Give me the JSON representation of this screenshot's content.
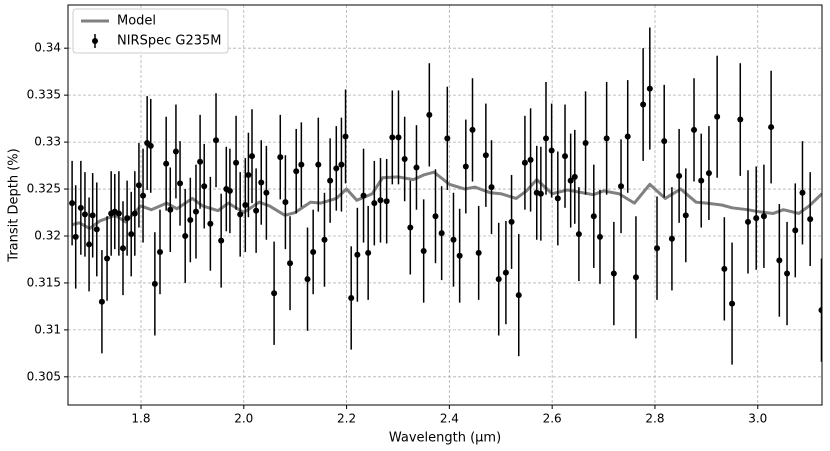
{
  "chart_data": {
    "type": "scatter",
    "xlabel": "Wavelength (μm)",
    "ylabel": "Transit Depth (%)",
    "xlim": [
      1.658,
      3.125
    ],
    "ylim": [
      0.302,
      0.3446
    ],
    "xticks": [
      1.8,
      {
        "value": 2,
        "label": "2.0"
      },
      2.2,
      2.4,
      2.6,
      2.8,
      {
        "value": 3,
        "label": "3.0"
      }
    ],
    "yticks": [
      0.305,
      0.31,
      0.315,
      0.32,
      0.325,
      0.33,
      0.335,
      0.34
    ],
    "grid": true,
    "legend": "upper-left",
    "series": [
      {
        "name": "Model",
        "style": "line",
        "color": "#808080",
        "x": [
          1.666,
          1.68,
          1.7,
          1.72,
          1.75,
          1.77,
          1.8,
          1.82,
          1.85,
          1.87,
          1.9,
          1.92,
          1.95,
          1.97,
          2.0,
          2.03,
          2.05,
          2.08,
          2.1,
          2.13,
          2.15,
          2.18,
          2.2,
          2.22,
          2.25,
          2.27,
          2.3,
          2.33,
          2.35,
          2.37,
          2.4,
          2.43,
          2.45,
          2.48,
          2.5,
          2.53,
          2.55,
          2.57,
          2.6,
          2.63,
          2.65,
          2.68,
          2.7,
          2.73,
          2.76,
          2.79,
          2.82,
          2.85,
          2.88,
          2.9,
          2.93,
          2.95,
          2.98,
          3.0,
          3.03,
          3.05,
          3.08,
          3.1,
          3.125
        ],
        "values": [
          0.3212,
          0.3214,
          0.3208,
          0.3216,
          0.3222,
          0.3215,
          0.3232,
          0.3228,
          0.3235,
          0.3229,
          0.324,
          0.3232,
          0.3227,
          0.3235,
          0.3225,
          0.3236,
          0.3232,
          0.3222,
          0.3225,
          0.3236,
          0.3235,
          0.324,
          0.325,
          0.3238,
          0.3245,
          0.3262,
          0.3263,
          0.326,
          0.3265,
          0.3268,
          0.3255,
          0.325,
          0.3252,
          0.3246,
          0.3245,
          0.324,
          0.3248,
          0.326,
          0.3245,
          0.3249,
          0.3247,
          0.3244,
          0.3248,
          0.3245,
          0.3235,
          0.3255,
          0.324,
          0.325,
          0.3236,
          0.3235,
          0.3233,
          0.323,
          0.3228,
          0.3226,
          0.3224,
          0.3228,
          0.3224,
          0.3232,
          0.3245
        ]
      },
      {
        "name": "NIRSpec G235M",
        "style": "errorbar",
        "color": "#000000",
        "x": [
          1.666,
          1.673,
          1.683,
          1.691,
          1.699,
          1.706,
          1.714,
          1.724,
          1.734,
          1.742,
          1.749,
          1.757,
          1.765,
          1.773,
          1.781,
          1.788,
          1.796,
          1.804,
          1.812,
          1.819,
          1.827,
          1.837,
          1.849,
          1.857,
          1.868,
          1.876,
          1.886,
          1.896,
          1.907,
          1.915,
          1.923,
          1.935,
          1.946,
          1.956,
          1.966,
          1.973,
          1.985,
          1.993,
          2.003,
          2.009,
          2.016,
          2.024,
          2.034,
          2.044,
          2.059,
          2.071,
          2.081,
          2.09,
          2.102,
          2.112,
          2.124,
          2.135,
          2.145,
          2.157,
          2.168,
          2.18,
          2.19,
          2.198,
          2.209,
          2.221,
          2.233,
          2.242,
          2.254,
          2.266,
          2.278,
          2.289,
          2.301,
          2.313,
          2.324,
          2.336,
          2.35,
          2.361,
          2.373,
          2.385,
          2.396,
          2.408,
          2.42,
          2.432,
          2.445,
          2.457,
          2.471,
          2.482,
          2.496,
          2.51,
          2.521,
          2.535,
          2.547,
          2.558,
          2.57,
          2.578,
          2.588,
          2.599,
          2.611,
          2.625,
          2.636,
          2.644,
          2.652,
          2.665,
          2.681,
          2.693,
          2.706,
          2.72,
          2.734,
          2.747,
          2.763,
          2.777,
          2.79,
          2.804,
          2.818,
          2.833,
          2.847,
          2.86,
          2.876,
          2.89,
          2.905,
          2.921,
          2.935,
          2.95,
          2.966,
          2.981,
          2.997,
          3.012,
          3.026,
          3.042,
          3.057,
          3.073,
          3.087,
          3.102,
          3.124
        ],
        "values": [
          0.3235,
          0.3199,
          0.323,
          0.3223,
          0.3191,
          0.3222,
          0.3207,
          0.313,
          0.3176,
          0.3224,
          0.3226,
          0.3224,
          0.3187,
          0.3219,
          0.3202,
          0.3224,
          0.3254,
          0.3243,
          0.3299,
          0.3296,
          0.3149,
          0.3183,
          0.3277,
          0.3228,
          0.329,
          0.3256,
          0.32,
          0.3217,
          0.3226,
          0.3279,
          0.3253,
          0.3213,
          0.3302,
          0.3195,
          0.325,
          0.3248,
          0.3278,
          0.3223,
          0.3233,
          0.3265,
          0.3285,
          0.3227,
          0.3257,
          0.3246,
          0.3139,
          0.3284,
          0.3236,
          0.3171,
          0.3269,
          0.3276,
          0.3154,
          0.3183,
          0.3276,
          0.3196,
          0.3259,
          0.3272,
          0.3276,
          0.3306,
          0.3134,
          0.318,
          0.3243,
          0.3182,
          0.3235,
          0.3238,
          0.3237,
          0.3305,
          0.3305,
          0.3282,
          0.3209,
          0.3273,
          0.3184,
          0.3329,
          0.3221,
          0.3203,
          0.3304,
          0.3196,
          0.3179,
          0.3274,
          0.3313,
          0.3182,
          0.3286,
          0.3252,
          0.3154,
          0.3161,
          0.3215,
          0.3137,
          0.3278,
          0.3281,
          0.3246,
          0.3245,
          0.3304,
          0.3291,
          0.324,
          0.3285,
          0.3259,
          0.3263,
          0.3202,
          0.3299,
          0.3221,
          0.3199,
          0.3304,
          0.316,
          0.3253,
          0.3306,
          0.3156,
          0.334,
          0.3357,
          0.3187,
          0.3301,
          0.3197,
          0.3264,
          0.3222,
          0.3313,
          0.3259,
          0.3267,
          0.3327,
          0.3165,
          0.3128,
          0.3324,
          0.3215,
          0.3219,
          0.3221,
          0.3316,
          0.3174,
          0.316,
          0.3206,
          0.3246,
          0.3218,
          0.3121
        ],
        "errors": [
          0.0045,
          0.0055,
          0.005,
          0.0045,
          0.005,
          0.0045,
          0.005,
          0.0055,
          0.0045,
          0.0045,
          0.004,
          0.0045,
          0.005,
          0.004,
          0.0045,
          0.0045,
          0.0045,
          0.005,
          0.005,
          0.005,
          0.0055,
          0.0045,
          0.005,
          0.0045,
          0.005,
          0.0045,
          0.005,
          0.0045,
          0.005,
          0.005,
          0.0045,
          0.005,
          0.005,
          0.005,
          0.0045,
          0.0045,
          0.005,
          0.0045,
          0.005,
          0.0045,
          0.005,
          0.0045,
          0.0045,
          0.005,
          0.0055,
          0.0045,
          0.005,
          0.005,
          0.0045,
          0.0045,
          0.0055,
          0.0045,
          0.005,
          0.005,
          0.0045,
          0.0045,
          0.005,
          0.005,
          0.0055,
          0.005,
          0.005,
          0.005,
          0.0045,
          0.0045,
          0.0045,
          0.005,
          0.005,
          0.0045,
          0.005,
          0.0045,
          0.0055,
          0.0055,
          0.005,
          0.005,
          0.0055,
          0.005,
          0.005,
          0.005,
          0.0055,
          0.005,
          0.0055,
          0.005,
          0.006,
          0.0055,
          0.005,
          0.0065,
          0.005,
          0.0055,
          0.005,
          0.005,
          0.006,
          0.005,
          0.005,
          0.0055,
          0.005,
          0.005,
          0.005,
          0.0055,
          0.0055,
          0.005,
          0.006,
          0.0055,
          0.005,
          0.006,
          0.0065,
          0.006,
          0.0065,
          0.0055,
          0.006,
          0.0055,
          0.005,
          0.005,
          0.0055,
          0.005,
          0.005,
          0.0065,
          0.0055,
          0.0065,
          0.006,
          0.0055,
          0.0055,
          0.0055,
          0.006,
          0.006,
          0.0055,
          0.005,
          0.0055,
          0.005,
          0.0055
        ]
      }
    ]
  }
}
